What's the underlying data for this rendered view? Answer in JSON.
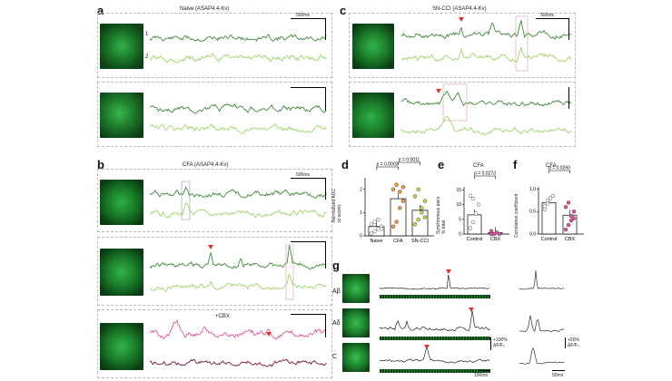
{
  "panels": {
    "a": {
      "letter": "a",
      "title": "Naive (ASAP4.4-Kv)",
      "scale_time": "500ms",
      "scale_amp": "+50%\nΔF/F₀"
    },
    "b": {
      "letter": "b",
      "title": "CFA (ASAP4.4-Kv)",
      "scale_time": "500ms",
      "scale_amp": "+50%\nΔF/F₀",
      "cbx_label": "+CBX"
    },
    "c": {
      "letter": "c",
      "title": "SN-CCI (ASAP4.4-Kv)",
      "scale_time": "500ms",
      "scale_amp": "+50%\nΔF/F₀"
    },
    "d": {
      "letter": "d",
      "ylabel": "Normalized AUC\n(z-score)",
      "p1": "p = 0.0002",
      "p2": "p = 0.0011",
      "categories": [
        "Naive",
        "CFA",
        "SN-CCI"
      ]
    },
    "e": {
      "letter": "e",
      "title": "CFA",
      "ylabel": "Synchronous pairs\n% total",
      "p": "p = 0.0273",
      "categories": [
        "Control",
        "CBX"
      ]
    },
    "f": {
      "letter": "f",
      "title": "CFA",
      "ylabel": "Correlation coefficient",
      "p": "p = 0.0260",
      "categories": [
        "Control",
        "CBX"
      ]
    },
    "g": {
      "letter": "g",
      "rows": [
        "Aβ",
        "Aδ",
        "C"
      ],
      "scale_amp": "+100%\nΔF/F₀",
      "scale_amp2": "+50%\nΔF/F₀",
      "scale_time": "100ms",
      "scale_time2": "50ms"
    }
  },
  "trace_labels": {
    "one": "1",
    "two": "2"
  },
  "colors": {
    "dark_green": "#3f8a3a",
    "light_green": "#9ed46a",
    "pink": "#e0559b",
    "maroon": "#7a1238",
    "marker": "#e0352b"
  },
  "chart_data": [
    {
      "type": "bar",
      "panel": "d",
      "categories": [
        "Naive",
        "CFA",
        "SN-CCI"
      ],
      "values": [
        0.4,
        1.6,
        1.1
      ],
      "ylim": [
        0,
        2.5
      ],
      "ticks": [
        "0",
        "1",
        "2"
      ]
    },
    {
      "type": "bar",
      "panel": "e",
      "categories": [
        "Control",
        "CBX"
      ],
      "values": [
        6.5,
        0.5
      ],
      "ylim": [
        0,
        16
      ],
      "ticks": [
        "0",
        "5",
        "10",
        "15"
      ]
    },
    {
      "type": "bar",
      "panel": "f",
      "categories": [
        "Control",
        "CBX"
      ],
      "values": [
        0.7,
        0.42
      ],
      "ylim": [
        0,
        1.05
      ],
      "ticks": [
        "0.0",
        "0.5",
        "1.0"
      ]
    }
  ]
}
